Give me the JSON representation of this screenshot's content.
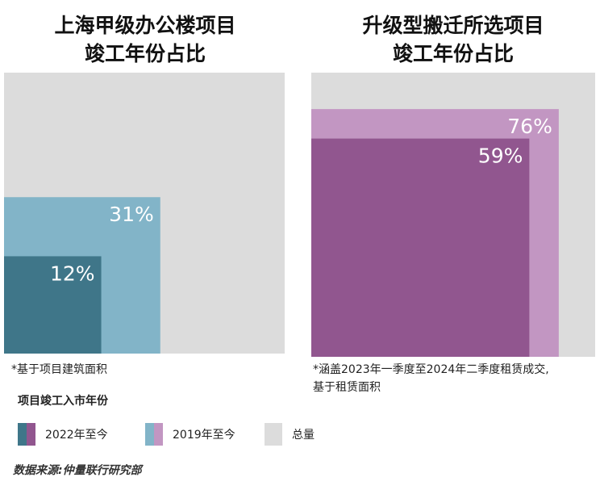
{
  "colors": {
    "total": "#dcdcdc",
    "blue_2019": "#82b4c8",
    "blue_2022": "#3f7689",
    "purple_2019": "#c296c2",
    "purple_2022": "#91568f"
  },
  "chart_data": [
    {
      "type": "area-square",
      "title_lines": [
        "上海甲级办公楼项目",
        "竣工年份占比"
      ],
      "series": [
        {
          "name": "总量",
          "value": 100
        },
        {
          "name": "2019年至今",
          "value": 31,
          "label": "31%"
        },
        {
          "name": "2022年至今",
          "value": 12,
          "label": "12%"
        }
      ],
      "anchor": "bottom-left",
      "note": "*基于项目建筑面积"
    },
    {
      "type": "area-square",
      "title_lines": [
        "升级型搬迁所选项目",
        "竣工年份占比"
      ],
      "series": [
        {
          "name": "总量",
          "value": 100
        },
        {
          "name": "2019年至今",
          "value": 76,
          "label": "76%"
        },
        {
          "name": "2022年至今",
          "value": 59,
          "label": "59%"
        }
      ],
      "anchor": "bottom-left",
      "note_lines": [
        "*涵盖2023年一季度至2024年二季度租赁成交,",
        "基于租赁面积"
      ]
    }
  ],
  "legend": {
    "title": "项目竣工入市年份",
    "items": [
      {
        "label": "2022年至今"
      },
      {
        "label": "2019年至今"
      },
      {
        "label": "总量"
      }
    ]
  },
  "source": "数据来源:仲量联行研究部"
}
